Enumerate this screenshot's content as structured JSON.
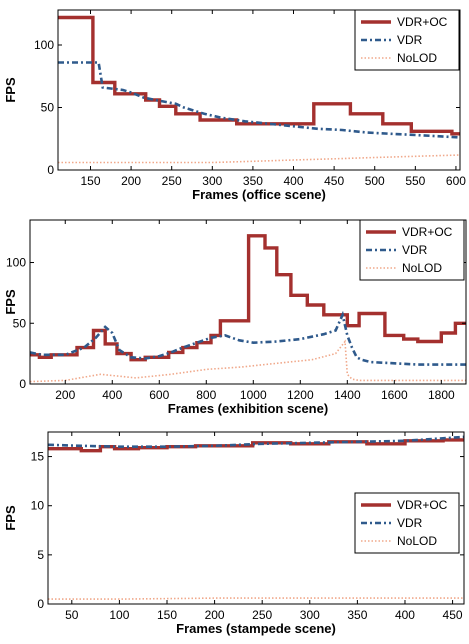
{
  "series_colors": {
    "VDR+OC": "#a4302e",
    "VDR": "#2f5a8c",
    "NoLOD": "#f0a88a"
  },
  "chart_data": [
    {
      "type": "line",
      "xlabel": "Frames (office scene)",
      "ylabel": "FPS",
      "xlim": [
        110,
        605
      ],
      "ylim": [
        0,
        128
      ],
      "xticks": [
        "150",
        "200",
        "250",
        "300",
        "350",
        "400",
        "450",
        "500",
        "550",
        "600"
      ],
      "yticks": [
        "0",
        "50",
        "100"
      ],
      "xtick_values": [
        150,
        200,
        250,
        300,
        350,
        400,
        450,
        500,
        550,
        600
      ],
      "ytick_values": [
        0,
        50,
        100
      ],
      "legend": "top-right",
      "series": [
        {
          "name": "VDR+OC",
          "x": [
            110,
            153,
            153,
            180,
            180,
            218,
            218,
            235,
            235,
            255,
            255,
            285,
            285,
            330,
            330,
            425,
            425,
            470,
            470,
            510,
            510,
            545,
            545,
            595,
            595,
            605
          ],
          "y": [
            122,
            122,
            70,
            70,
            61,
            61,
            56,
            56,
            51,
            51,
            45,
            45,
            40,
            40,
            37,
            37,
            53,
            53,
            45,
            45,
            37,
            37,
            31,
            31,
            29,
            29
          ]
        },
        {
          "name": "VDR",
          "x": [
            110,
            140,
            160,
            165,
            190,
            200,
            215,
            230,
            255,
            265,
            290,
            310,
            340,
            370,
            400,
            430,
            460,
            490,
            520,
            550,
            580,
            605
          ],
          "y": [
            86,
            86,
            86,
            66,
            64,
            62,
            58,
            56,
            53,
            50,
            45,
            42,
            39,
            37,
            35,
            33,
            32,
            30,
            29,
            28,
            27,
            26
          ]
        },
        {
          "name": "NoLOD",
          "x": [
            110,
            150,
            200,
            250,
            300,
            350,
            400,
            450,
            500,
            550,
            605
          ],
          "y": [
            6,
            6,
            6,
            6,
            6,
            7,
            8,
            9,
            10,
            11,
            12
          ]
        }
      ]
    },
    {
      "type": "line",
      "xlabel": "Frames (exhibition scene)",
      "ylabel": "FPS",
      "xlim": [
        50,
        1905
      ],
      "ylim": [
        0,
        135
      ],
      "xticks": [
        "200",
        "400",
        "600",
        "800",
        "1000",
        "1200",
        "1400",
        "1600",
        "1800"
      ],
      "yticks": [
        "0",
        "50",
        "100"
      ],
      "xtick_values": [
        200,
        400,
        600,
        800,
        1000,
        1200,
        1400,
        1600,
        1800
      ],
      "ytick_values": [
        0,
        50,
        100
      ],
      "legend": "top-right",
      "series": [
        {
          "name": "VDR+OC",
          "x": [
            50,
            90,
            90,
            140,
            140,
            250,
            250,
            320,
            320,
            370,
            370,
            420,
            420,
            480,
            480,
            540,
            540,
            640,
            640,
            700,
            700,
            760,
            760,
            820,
            820,
            860,
            860,
            980,
            980,
            1050,
            1050,
            1100,
            1100,
            1160,
            1160,
            1230,
            1230,
            1300,
            1300,
            1400,
            1400,
            1450,
            1450,
            1560,
            1560,
            1640,
            1640,
            1700,
            1700,
            1800,
            1800,
            1860,
            1860,
            1905
          ],
          "y": [
            24,
            24,
            22,
            22,
            24,
            24,
            30,
            30,
            44,
            44,
            33,
            33,
            25,
            25,
            20,
            20,
            22,
            22,
            26,
            26,
            30,
            30,
            34,
            34,
            40,
            40,
            52,
            52,
            122,
            122,
            112,
            112,
            90,
            90,
            73,
            73,
            65,
            65,
            57,
            57,
            48,
            48,
            58,
            58,
            40,
            40,
            37,
            37,
            35,
            35,
            42,
            42,
            50,
            50
          ]
        },
        {
          "name": "VDR",
          "x": [
            50,
            100,
            200,
            280,
            330,
            370,
            400,
            430,
            480,
            540,
            600,
            650,
            700,
            760,
            820,
            880,
            940,
            1000,
            1100,
            1200,
            1300,
            1350,
            1380,
            1400,
            1420,
            1440,
            1460,
            1500,
            1600,
            1700,
            1800,
            1905
          ],
          "y": [
            26,
            24,
            24,
            30,
            38,
            47,
            42,
            28,
            22,
            21,
            23,
            26,
            30,
            34,
            38,
            40,
            36,
            34,
            35,
            37,
            41,
            44,
            57,
            40,
            30,
            22,
            20,
            18,
            17,
            16,
            16,
            16
          ]
        },
        {
          "name": "NoLOD",
          "x": [
            50,
            200,
            350,
            500,
            650,
            800,
            950,
            1100,
            1250,
            1350,
            1390,
            1400,
            1420,
            1450,
            1600,
            1750,
            1905
          ],
          "y": [
            2,
            3,
            8,
            5,
            8,
            12,
            14,
            17,
            20,
            25,
            35,
            8,
            4,
            3,
            3,
            3,
            3
          ]
        }
      ]
    },
    {
      "type": "line",
      "xlabel": "Frames (stampede scene)",
      "ylabel": "FPS",
      "xlim": [
        25,
        462
      ],
      "ylim": [
        0,
        17.5
      ],
      "xticks": [
        "50",
        "100",
        "150",
        "200",
        "250",
        "300",
        "350",
        "400",
        "450"
      ],
      "yticks": [
        "0",
        "5",
        "10",
        "15"
      ],
      "xtick_values": [
        50,
        100,
        150,
        200,
        250,
        300,
        350,
        400,
        450
      ],
      "ytick_values": [
        0,
        5,
        10,
        15
      ],
      "legend": "center-right",
      "series": [
        {
          "name": "VDR+OC",
          "x": [
            25,
            60,
            60,
            80,
            80,
            95,
            95,
            120,
            120,
            150,
            150,
            180,
            180,
            240,
            240,
            280,
            280,
            320,
            320,
            360,
            360,
            400,
            400,
            440,
            440,
            462
          ],
          "y": [
            15.8,
            15.8,
            15.6,
            15.6,
            16,
            16,
            15.8,
            15.8,
            15.9,
            15.9,
            16,
            16,
            16.1,
            16.1,
            16.4,
            16.4,
            16.3,
            16.3,
            16.5,
            16.5,
            16.3,
            16.3,
            16.6,
            16.6,
            16.7,
            16.7
          ]
        },
        {
          "name": "VDR",
          "x": [
            25,
            60,
            100,
            150,
            200,
            250,
            300,
            350,
            400,
            430,
            462
          ],
          "y": [
            16.2,
            16.1,
            16.0,
            16.0,
            16.1,
            16.3,
            16.4,
            16.5,
            16.6,
            16.8,
            17.0
          ]
        },
        {
          "name": "NoLOD",
          "x": [
            25,
            100,
            200,
            300,
            400,
            462
          ],
          "y": [
            0.5,
            0.5,
            0.6,
            0.6,
            0.6,
            0.6
          ]
        }
      ]
    }
  ]
}
